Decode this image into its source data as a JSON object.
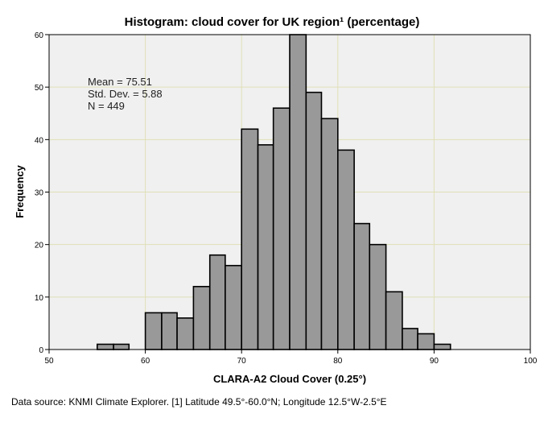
{
  "chart_data": {
    "type": "bar",
    "title": "Histogram: cloud cover for UK region¹ (percentage)",
    "xlabel": "CLARA-A2 Cloud Cover (0.25°)",
    "ylabel": "Frequency",
    "xlim": [
      50,
      100
    ],
    "ylim": [
      0,
      60
    ],
    "xticks": [
      50,
      60,
      70,
      80,
      90,
      100
    ],
    "yticks": [
      0,
      10,
      20,
      30,
      40,
      50,
      60
    ],
    "bins": [
      {
        "start": 55.0,
        "end": 56.7,
        "count": 1
      },
      {
        "start": 56.7,
        "end": 58.3,
        "count": 1
      },
      {
        "start": 58.3,
        "end": 60.0,
        "count": 0
      },
      {
        "start": 60.0,
        "end": 61.7,
        "count": 7
      },
      {
        "start": 61.7,
        "end": 63.3,
        "count": 7
      },
      {
        "start": 63.3,
        "end": 65.0,
        "count": 6
      },
      {
        "start": 65.0,
        "end": 66.7,
        "count": 12
      },
      {
        "start": 66.7,
        "end": 68.3,
        "count": 18
      },
      {
        "start": 68.3,
        "end": 70.0,
        "count": 16
      },
      {
        "start": 70.0,
        "end": 71.7,
        "count": 42
      },
      {
        "start": 71.7,
        "end": 73.3,
        "count": 39
      },
      {
        "start": 73.3,
        "end": 75.0,
        "count": 46
      },
      {
        "start": 75.0,
        "end": 76.7,
        "count": 60
      },
      {
        "start": 76.7,
        "end": 78.3,
        "count": 49
      },
      {
        "start": 78.3,
        "end": 80.0,
        "count": 44
      },
      {
        "start": 80.0,
        "end": 81.7,
        "count": 38
      },
      {
        "start": 81.7,
        "end": 83.3,
        "count": 24
      },
      {
        "start": 83.3,
        "end": 85.0,
        "count": 20
      },
      {
        "start": 85.0,
        "end": 86.7,
        "count": 11
      },
      {
        "start": 86.7,
        "end": 88.3,
        "count": 4
      },
      {
        "start": 88.3,
        "end": 90.0,
        "count": 3
      },
      {
        "start": 90.0,
        "end": 91.7,
        "count": 1
      }
    ],
    "stats": {
      "mean": "Mean = 75.51",
      "std": "Std. Dev. = 5.88",
      "n": "N = 449"
    },
    "grid": true,
    "bar_color": "#999999",
    "bar_edge_color": "#000000",
    "plot_background": "#f0f0f0",
    "grid_color": "#e0e0b8"
  },
  "source_note": "Data source: KNMI Climate Explorer. [1] Latitude 49.5°-60.0°N; Longitude 12.5°W-2.5°E"
}
